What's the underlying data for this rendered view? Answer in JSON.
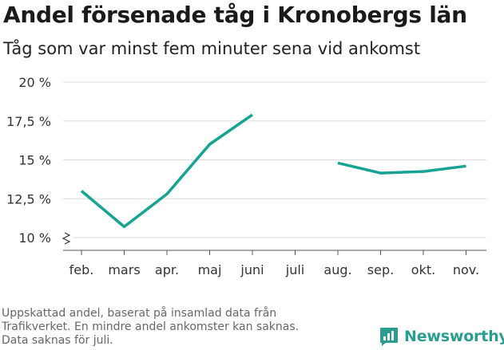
{
  "header": {
    "title": "Andel försenade tåg i Kronobergs län",
    "subtitle": "Tåg som var minst fem minuter sena vid ankomst"
  },
  "chart_data": {
    "type": "line",
    "title": "Andel försenade tåg i Kronobergs län",
    "subtitle": "Tåg som var minst fem minuter sena vid ankomst",
    "categories": [
      "feb.",
      "mars",
      "apr.",
      "maj",
      "juni",
      "juli",
      "aug.",
      "sep.",
      "okt.",
      "nov."
    ],
    "series": [
      {
        "values": [
          13.0,
          10.7,
          12.8,
          16.0,
          17.9,
          null,
          14.8,
          14.15,
          14.25,
          14.6
        ]
      }
    ],
    "y_ticks": [
      10,
      12.5,
      15,
      17.5,
      20
    ],
    "y_tick_labels": [
      "10 %",
      "12,5 %",
      "15 %",
      "17,5 %",
      "20 %"
    ],
    "ylim": [
      9.2,
      20
    ],
    "y_axis_break": true,
    "grid": true,
    "line_color": "#16a394",
    "grid_color": "#dcdcdc",
    "axis_color": "#555555"
  },
  "footer": {
    "note_lines": [
      "Uppskattad andel, baserat på insamlad data från",
      "Trafikverket. En mindre andel ankomster kan saknas.",
      "Data saknas för juli."
    ],
    "brand_name": "Newsworthy",
    "brand_icon": "newsworthy-logo-icon",
    "brand_color": "#2a9d90"
  }
}
